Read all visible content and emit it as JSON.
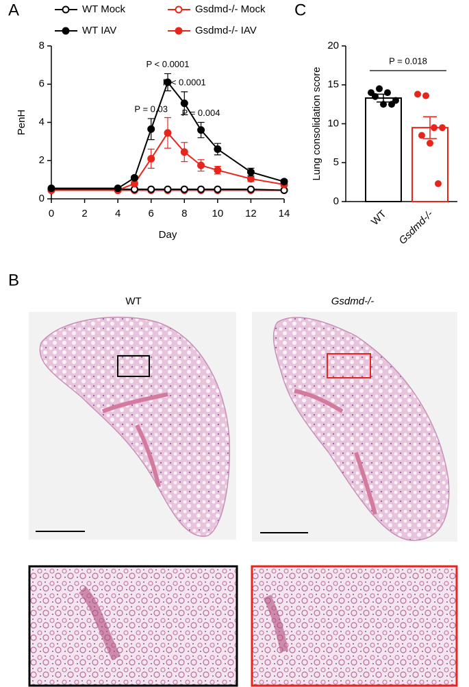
{
  "panel_labels": [
    "A",
    "B",
    "C"
  ],
  "histology": {
    "titles": [
      "WT",
      "Gsdmd-/-"
    ]
  },
  "chart_data": [
    {
      "type": "line",
      "xlabel": "Day",
      "ylabel": "PenH",
      "legend": "top",
      "x": [
        0,
        4,
        5,
        6,
        7,
        8,
        9,
        10,
        12,
        14
      ],
      "xlim": [
        0,
        14
      ],
      "xticks": [
        0,
        2,
        4,
        6,
        8,
        10,
        12,
        14
      ],
      "ylim": [
        0,
        8
      ],
      "yticks": [
        0,
        2,
        4,
        6,
        8
      ],
      "series": [
        {
          "name": "WT Mock",
          "color": "#000000",
          "marker": "open",
          "values": [
            0.5,
            0.5,
            0.5,
            0.5,
            0.5,
            0.5,
            0.5,
            0.5,
            0.5,
            0.45
          ]
        },
        {
          "name": "WT IAV",
          "color": "#000000",
          "marker": "filled",
          "values": [
            0.55,
            0.55,
            1.1,
            3.65,
            6.1,
            5.0,
            3.6,
            2.6,
            1.4,
            0.9
          ],
          "errors": [
            0.05,
            0.05,
            0.1,
            0.55,
            0.45,
            0.6,
            0.4,
            0.3,
            0.2,
            0.1
          ]
        },
        {
          "name": "Gsdmd-/- Mock",
          "color": "#e8251c",
          "marker": "open",
          "values": [
            0.45,
            0.45,
            0.45,
            0.45,
            0.45,
            0.45,
            0.45,
            0.45,
            0.45,
            0.45
          ]
        },
        {
          "name": "Gsdmd-/- IAV",
          "color": "#e8251c",
          "marker": "filled",
          "values": [
            0.45,
            0.45,
            0.8,
            2.1,
            3.45,
            2.45,
            1.75,
            1.5,
            1.05,
            0.75
          ],
          "errors": [
            0.05,
            0.05,
            0.1,
            0.5,
            0.8,
            0.5,
            0.3,
            0.2,
            0.15,
            0.1
          ]
        }
      ],
      "annotations": [
        {
          "text": "P = 0.03",
          "x": 6
        },
        {
          "text": "P < 0.0001",
          "x": 7
        },
        {
          "text": "P < 0.0001",
          "x": 8
        },
        {
          "text": "P = 0.004",
          "x": 9
        }
      ]
    },
    {
      "type": "bar",
      "ylabel": "Lung consolidation score",
      "categories": [
        "WT",
        "Gsdmd-/-"
      ],
      "colors": [
        "#000000",
        "#e8251c"
      ],
      "values": [
        13.3,
        9.5
      ],
      "errors": [
        0.5,
        1.4
      ],
      "points": [
        [
          14,
          14.5,
          14,
          13,
          13.5,
          12.5,
          12.5
        ],
        [
          13.8,
          13.6,
          9.5,
          9.5,
          8.5,
          7.5,
          2.3
        ]
      ],
      "ylim": [
        0,
        20
      ],
      "yticks": [
        0,
        5,
        10,
        15,
        20
      ],
      "annotation": "P = 0.018"
    }
  ]
}
